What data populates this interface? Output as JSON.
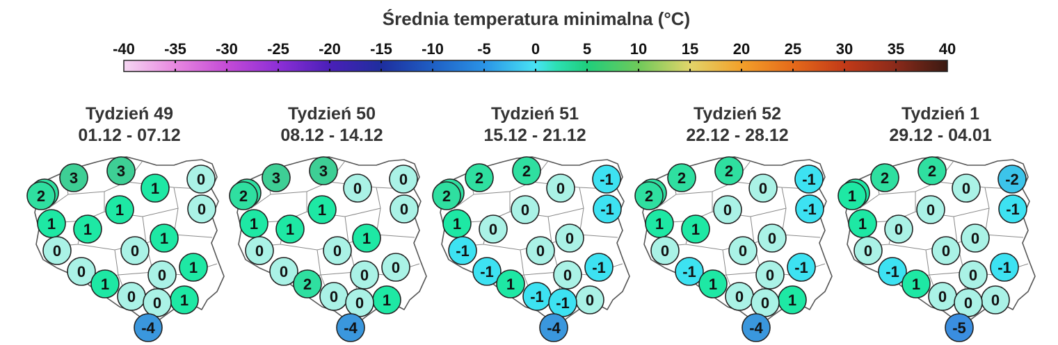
{
  "title": "Średnia temperatura minimalna (°C)",
  "colorbar": {
    "ticks": [
      -40,
      -35,
      -30,
      -25,
      -20,
      -15,
      -10,
      -5,
      0,
      5,
      10,
      15,
      20,
      25,
      30,
      35,
      40
    ],
    "stops": [
      {
        "v": -40,
        "color": "#f5d6f2"
      },
      {
        "v": -35,
        "color": "#e887e0"
      },
      {
        "v": -30,
        "color": "#c44bd6"
      },
      {
        "v": -25,
        "color": "#8d2fd6"
      },
      {
        "v": -20,
        "color": "#4a1fb8"
      },
      {
        "v": -15,
        "color": "#1e2e9e"
      },
      {
        "v": -10,
        "color": "#1f5fc4"
      },
      {
        "v": -5,
        "color": "#2a93e6"
      },
      {
        "v": 0,
        "color": "#48e3f5"
      },
      {
        "v": 2,
        "color": "#2de0b4"
      },
      {
        "v": 5,
        "color": "#1fce7c"
      },
      {
        "v": 10,
        "color": "#6fc95a"
      },
      {
        "v": 15,
        "color": "#e2d56a"
      },
      {
        "v": 20,
        "color": "#f3a02a"
      },
      {
        "v": 25,
        "color": "#e56a1a"
      },
      {
        "v": 30,
        "color": "#c23a18"
      },
      {
        "v": 35,
        "color": "#8a2a1a"
      },
      {
        "v": 40,
        "color": "#3a1a12"
      }
    ]
  },
  "value_colors": {
    "3": "#3ecf95",
    "2": "#2fdfa0",
    "1": "#1ee8a4",
    "0": "#aaf2e6",
    "-1": "#3de2f2",
    "-2": "#3cc4ea",
    "-4": "#3a97dd",
    "-5": "#3a8ee0"
  },
  "panels": [
    {
      "week": "Tydzień 49",
      "dates": "01.12 - 07.12",
      "values": [
        3,
        3,
        2,
        1,
        0,
        2,
        1,
        0,
        1,
        1,
        1,
        0,
        0,
        1,
        0,
        0,
        1,
        1,
        0,
        0,
        -4
      ]
    },
    {
      "week": "Tydzień 50",
      "dates": "08.12 - 14.12",
      "values": [
        3,
        3,
        2,
        0,
        0,
        2,
        1,
        0,
        1,
        1,
        1,
        0,
        0,
        0,
        0,
        0,
        2,
        1,
        0,
        0,
        -4
      ]
    },
    {
      "week": "Tydzień 51",
      "dates": "15.12 - 21.12",
      "values": [
        2,
        2,
        2,
        0,
        -1,
        2,
        0,
        -1,
        1,
        0,
        0,
        -1,
        0,
        -1,
        -1,
        0,
        1,
        0,
        -1,
        -1,
        -4
      ]
    },
    {
      "week": "Tydzień 52",
      "dates": "22.12 - 28.12",
      "values": [
        2,
        2,
        2,
        0,
        -1,
        2,
        0,
        -1,
        1,
        1,
        0,
        0,
        0,
        -1,
        -1,
        0,
        1,
        1,
        0,
        0,
        -4
      ]
    },
    {
      "week": "Tydzień 1",
      "dates": "29.12 - 04.01",
      "values": [
        2,
        2,
        1,
        0,
        -2,
        1,
        0,
        -1,
        1,
        0,
        0,
        0,
        0,
        -1,
        -1,
        0,
        1,
        0,
        0,
        0,
        -5
      ]
    }
  ]
}
